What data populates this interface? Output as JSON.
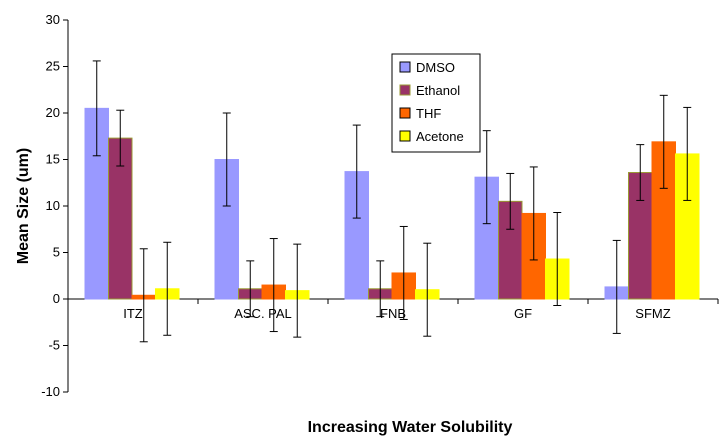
{
  "chart_data": {
    "type": "bar",
    "title": "",
    "xlabel": "Increasing Water Solubility",
    "ylabel": "Mean Size (um)",
    "ylim": [
      -10,
      30
    ],
    "yticks": [
      -10,
      -5,
      0,
      5,
      10,
      15,
      20,
      25,
      30
    ],
    "categories": [
      "ITZ",
      "ASC. PAL",
      "FNB",
      "GF",
      "SFMZ"
    ],
    "series": [
      {
        "name": "DMSO",
        "color": "#9999ff",
        "values": [
          20.5,
          15.0,
          13.7,
          13.1,
          1.3
        ],
        "error": [
          5.1,
          5.0,
          5.0,
          5.0,
          5.0
        ]
      },
      {
        "name": "Ethanol",
        "color": "#993366",
        "values": [
          17.3,
          1.1,
          1.1,
          10.5,
          13.6
        ],
        "error": [
          3.0,
          3.0,
          3.0,
          3.0,
          3.0
        ]
      },
      {
        "name": "THF",
        "color": "#ff6600",
        "values": [
          0.4,
          1.5,
          2.8,
          9.2,
          16.9
        ],
        "error": [
          5.0,
          5.0,
          5.0,
          5.0,
          5.0
        ]
      },
      {
        "name": "Acetone",
        "color": "#ffff00",
        "values": [
          1.1,
          0.9,
          1.0,
          4.3,
          15.6
        ],
        "error": [
          5.0,
          5.0,
          5.0,
          5.0,
          5.0
        ]
      }
    ],
    "grid": false,
    "legend_position": "top-center"
  }
}
